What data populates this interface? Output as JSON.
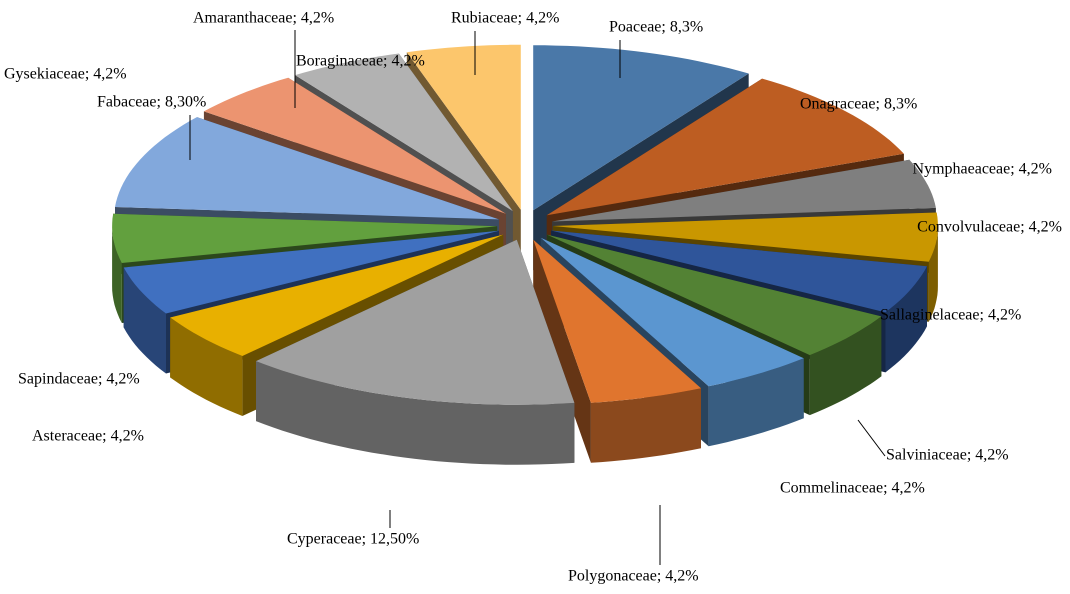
{
  "chart_data": {
    "type": "pie",
    "three_d": true,
    "exploded": true,
    "categories": [
      "Poaceae; 8,3%",
      "Onagraceae; 8,3%",
      "Nymphaeaceae; 4,2%",
      "Convolvulaceae; 4,2%",
      "Sallaginelaceae; 4,2%",
      "Salviniaceae; 4,2%",
      "Commelinaceae; 4,2%",
      "Polygonaceae; 4,2%",
      "Cyperaceae; 12,50%",
      "Asteraceae; 4,2%",
      "Sapindaceae; 4,2%",
      "Gysekiaceae; 4,2%",
      "Fabaceae; 8,30%",
      "Amaranthaceae; 4,2%",
      "Boraginaceae; 4,2%",
      "Rubiaceae; 4,2%"
    ],
    "values": [
      8.3,
      8.3,
      4.2,
      4.2,
      4.2,
      4.2,
      4.2,
      4.2,
      12.5,
      4.2,
      4.2,
      4.2,
      8.3,
      4.2,
      4.2,
      4.2
    ],
    "colors": [
      "#4a78a8",
      "#bd5d22",
      "#7f7f7f",
      "#c99700",
      "#2f559a",
      "#538234",
      "#5b96d0",
      "#e0752e",
      "#a0a0a0",
      "#e8b000",
      "#4070c0",
      "#62a03e",
      "#82a8dc",
      "#ec9470",
      "#b2b2b2",
      "#fcc66c"
    ]
  }
}
